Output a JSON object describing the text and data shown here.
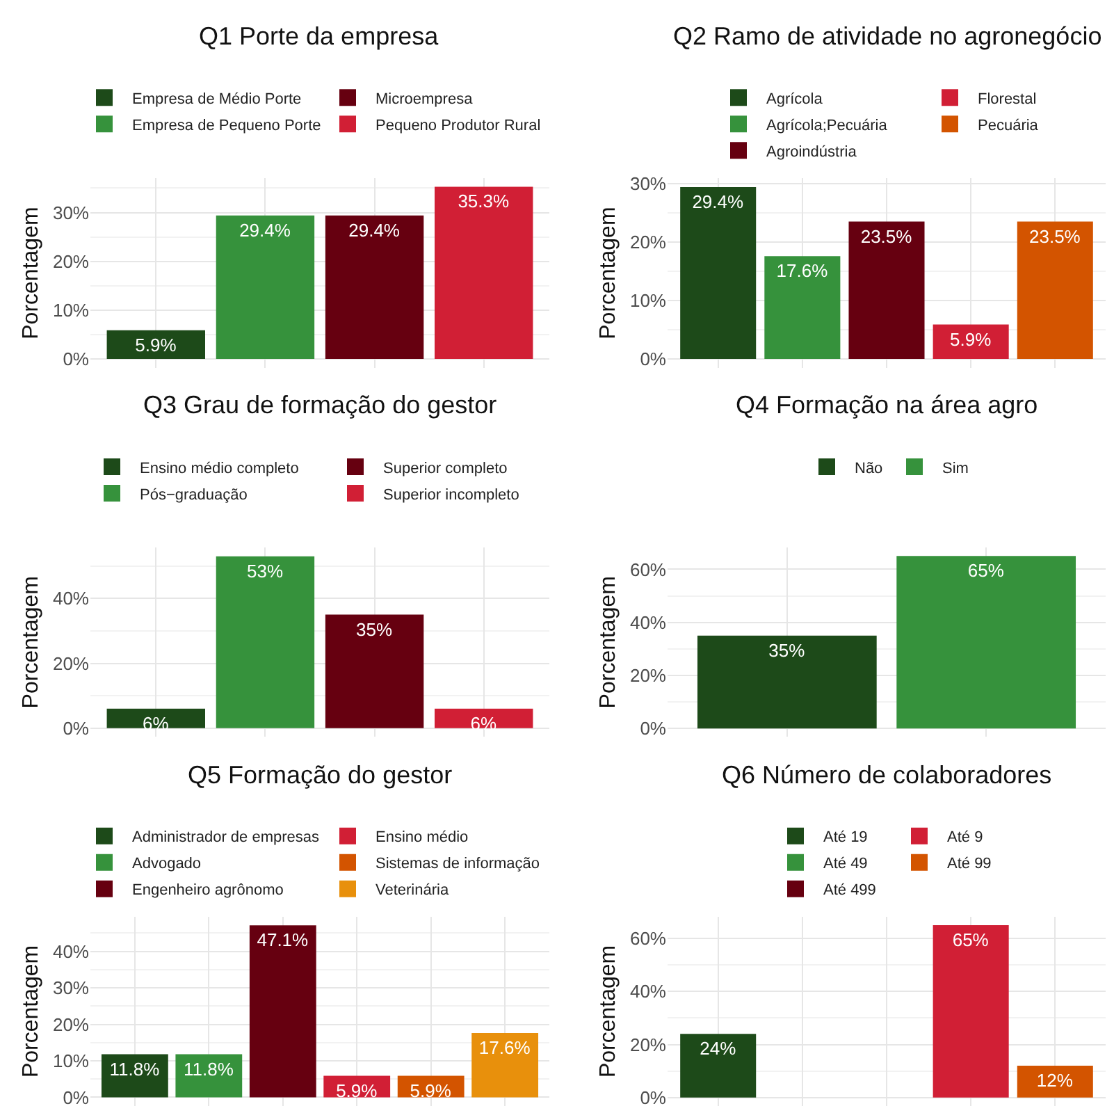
{
  "chart_data": [
    {
      "type": "bar",
      "title": "Q1 Porte da empresa",
      "ylabel": "Porcentagem",
      "legend": "top",
      "grid": true,
      "tick_labels": "y",
      "categories": [
        null,
        null,
        null,
        null
      ],
      "ylim": [
        -1.8,
        37
      ],
      "yticks": [
        {
          "value": 0,
          "label": "0%"
        },
        {
          "value": 10,
          "label": "10%"
        },
        {
          "value": 20,
          "label": "20%"
        },
        {
          "value": 30,
          "label": "30%"
        }
      ],
      "series": [
        {
          "name": "Empresa de Médio Porte",
          "color": "#1d4a19",
          "values": [
            5.9,
            null,
            null,
            null
          ],
          "value_labels": [
            "5.9%",
            null,
            null,
            null
          ]
        },
        {
          "name": "Empresa de Pequeno Porte",
          "color": "#36923c",
          "values": [
            null,
            29.4,
            null,
            null
          ],
          "value_labels": [
            null,
            "29.4%",
            null,
            null
          ]
        },
        {
          "name": "Microempresa",
          "color": "#660010",
          "values": [
            null,
            null,
            29.4,
            null
          ],
          "value_labels": [
            null,
            null,
            "29.4%",
            null
          ]
        },
        {
          "name": "Pequeno Produtor Rural",
          "color": "#d11f35",
          "values": [
            null,
            null,
            null,
            35.3
          ],
          "value_labels": [
            null,
            null,
            null,
            "35.3%"
          ]
        }
      ]
    },
    {
      "type": "bar",
      "title": "Q2 Ramo de atividade no agronegócio",
      "ylabel": "Porcentagem",
      "legend": "top",
      "grid": true,
      "tick_labels": "y",
      "categories": [
        null,
        null,
        null,
        null,
        null
      ],
      "ylim": [
        -1.5,
        30.9
      ],
      "yticks": [
        {
          "value": 0,
          "label": "0%"
        },
        {
          "value": 10,
          "label": "10%"
        },
        {
          "value": 20,
          "label": "20%"
        },
        {
          "value": 30,
          "label": "30%"
        }
      ],
      "series": [
        {
          "name": "Agrícola",
          "color": "#1d4a19",
          "values": [
            29.4,
            null,
            null,
            null,
            null
          ],
          "value_labels": [
            "29.4%",
            null,
            null,
            null,
            null
          ]
        },
        {
          "name": "Agrícola;Pecuária",
          "color": "#36923c",
          "values": [
            null,
            17.6,
            null,
            null,
            null
          ],
          "value_labels": [
            null,
            "17.6%",
            null,
            null,
            null
          ]
        },
        {
          "name": "Agroindústria",
          "color": "#660010",
          "values": [
            null,
            null,
            23.5,
            null,
            null
          ],
          "value_labels": [
            null,
            null,
            "23.5%",
            null,
            null
          ]
        },
        {
          "name": "Florestal",
          "color": "#d11f35",
          "values": [
            null,
            null,
            null,
            5.9,
            null
          ],
          "value_labels": [
            null,
            null,
            null,
            "5.9%",
            null
          ]
        },
        {
          "name": "Pecuária",
          "color": "#d35400",
          "values": [
            null,
            null,
            null,
            null,
            23.5
          ],
          "value_labels": [
            null,
            null,
            null,
            null,
            "23.5%"
          ]
        }
      ]
    },
    {
      "type": "bar",
      "title": "Q3 Grau de formação do gestor",
      "ylabel": "Porcentagem",
      "legend": "top",
      "grid": true,
      "tick_labels": "y",
      "categories": [
        null,
        null,
        null,
        null
      ],
      "ylim": [
        -2.7,
        55.7
      ],
      "yticks": [
        {
          "value": 0,
          "label": "0%"
        },
        {
          "value": 20,
          "label": "20%"
        },
        {
          "value": 40,
          "label": "40%"
        }
      ],
      "series": [
        {
          "name": "Ensino médio completo",
          "color": "#1d4a19",
          "values": [
            6,
            null,
            null,
            null
          ],
          "value_labels": [
            "6%",
            null,
            null,
            null
          ]
        },
        {
          "name": "Pós−graduação",
          "color": "#36923c",
          "values": [
            null,
            53,
            null,
            null
          ],
          "value_labels": [
            null,
            "53%",
            null,
            null
          ]
        },
        {
          "name": "Superior completo",
          "color": "#660010",
          "values": [
            null,
            null,
            35,
            null
          ],
          "value_labels": [
            null,
            null,
            "35%",
            null
          ]
        },
        {
          "name": "Superior incompleto",
          "color": "#d11f35",
          "values": [
            null,
            null,
            null,
            6
          ],
          "value_labels": [
            null,
            null,
            null,
            "6%"
          ]
        }
      ]
    },
    {
      "type": "bar",
      "title": "Q4 Formação na área agro",
      "ylabel": "Porcentagem",
      "legend": "top",
      "grid": true,
      "tick_labels": "y",
      "categories": [
        null,
        null
      ],
      "ylim": [
        -3.2,
        68.2
      ],
      "yticks": [
        {
          "value": 0,
          "label": "0%"
        },
        {
          "value": 20,
          "label": "20%"
        },
        {
          "value": 40,
          "label": "40%"
        },
        {
          "value": 60,
          "label": "60%"
        }
      ],
      "series": [
        {
          "name": "Não",
          "color": "#1d4a19",
          "values": [
            35,
            null
          ],
          "value_labels": [
            "35%",
            null
          ]
        },
        {
          "name": "Sim",
          "color": "#36923c",
          "values": [
            null,
            65
          ],
          "value_labels": [
            null,
            "65%"
          ]
        }
      ]
    },
    {
      "type": "bar",
      "title": "Q5 Formação do gestor",
      "ylabel": "Porcentagem",
      "legend": "top",
      "grid": true,
      "tick_labels": "y",
      "categories": [
        null,
        null,
        null,
        null,
        null,
        null
      ],
      "ylim": [
        -2.4,
        49.5
      ],
      "yticks": [
        {
          "value": 0,
          "label": "0%"
        },
        {
          "value": 10,
          "label": "10%"
        },
        {
          "value": 20,
          "label": "20%"
        },
        {
          "value": 30,
          "label": "30%"
        },
        {
          "value": 40,
          "label": "40%"
        }
      ],
      "series": [
        {
          "name": "Administrador de empresas",
          "color": "#1d4a19",
          "values": [
            11.8,
            null,
            null,
            null,
            null,
            null
          ],
          "value_labels": [
            "11.8%",
            null,
            null,
            null,
            null,
            null
          ]
        },
        {
          "name": "Advogado",
          "color": "#36923c",
          "values": [
            null,
            11.8,
            null,
            null,
            null,
            null
          ],
          "value_labels": [
            null,
            "11.8%",
            null,
            null,
            null,
            null
          ]
        },
        {
          "name": "Engenheiro agrônomo",
          "color": "#660010",
          "values": [
            null,
            null,
            47.1,
            null,
            null,
            null
          ],
          "value_labels": [
            null,
            null,
            "47.1%",
            null,
            null,
            null
          ]
        },
        {
          "name": "Ensino médio",
          "color": "#d11f35",
          "values": [
            null,
            null,
            null,
            5.9,
            null,
            null
          ],
          "value_labels": [
            null,
            null,
            null,
            "5.9%",
            null,
            null
          ]
        },
        {
          "name": "Sistemas de informação",
          "color": "#d35400",
          "values": [
            null,
            null,
            null,
            null,
            5.9,
            null
          ],
          "value_labels": [
            null,
            null,
            null,
            null,
            "5.9%",
            null
          ]
        },
        {
          "name": "Veterinária",
          "color": "#e8900c",
          "values": [
            null,
            null,
            null,
            null,
            null,
            17.6
          ],
          "value_labels": [
            null,
            null,
            null,
            null,
            null,
            "17.6%"
          ]
        }
      ]
    },
    {
      "type": "bar",
      "title": "Q6 Número de colaboradores",
      "ylabel": "Porcentagem",
      "legend": "top",
      "grid": true,
      "tick_labels": "y",
      "categories": [
        null,
        null,
        null,
        null,
        null
      ],
      "ylim": [
        -3.2,
        68.2
      ],
      "yticks": [
        {
          "value": 0,
          "label": "0%"
        },
        {
          "value": 20,
          "label": "20%"
        },
        {
          "value": 40,
          "label": "40%"
        },
        {
          "value": 60,
          "label": "60%"
        }
      ],
      "series": [
        {
          "name": "Até 19",
          "color": "#1d4a19",
          "values": [
            24,
            null,
            null,
            null,
            null
          ],
          "value_labels": [
            "24%",
            null,
            null,
            null,
            null
          ]
        },
        {
          "name": "Até 49",
          "color": "#36923c",
          "values": [
            null,
            0,
            null,
            null,
            null
          ]
        },
        {
          "name": "Até 499",
          "color": "#660010",
          "values": [
            null,
            null,
            0,
            null,
            null
          ]
        },
        {
          "name": "Até 9",
          "color": "#d11f35",
          "values": [
            null,
            null,
            null,
            65,
            null
          ],
          "value_labels": [
            null,
            null,
            null,
            "65%",
            null
          ]
        },
        {
          "name": "Até 99",
          "color": "#d35400",
          "values": [
            null,
            null,
            null,
            null,
            12
          ],
          "value_labels": [
            null,
            null,
            null,
            null,
            "12%"
          ]
        }
      ]
    }
  ]
}
